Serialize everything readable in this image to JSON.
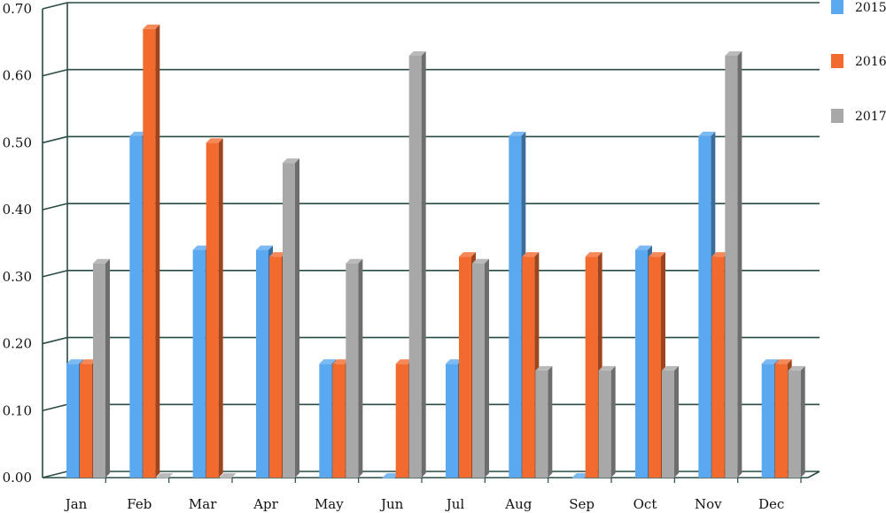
{
  "chart_data": {
    "type": "bar",
    "title": "",
    "xlabel": "",
    "ylabel": "",
    "ylim": [
      0,
      0.7
    ],
    "yticks": [
      "0.00",
      "0.10",
      "0.20",
      "0.30",
      "0.40",
      "0.50",
      "0.60",
      "0.70"
    ],
    "grid": true,
    "legend_position": "top-right",
    "categories": [
      "Jan",
      "Feb",
      "Mar",
      "Apr",
      "May",
      "Jun",
      "Jul",
      "Aug",
      "Sep",
      "Oct",
      "Nov",
      "Dec"
    ],
    "series": [
      {
        "name": "2015",
        "color": "#5aa8f0",
        "values": [
          0.17,
          0.51,
          0.34,
          0.34,
          0.17,
          0.0,
          0.17,
          0.51,
          0.0,
          0.34,
          0.51,
          0.17
        ]
      },
      {
        "name": "2016",
        "color": "#f26a2e",
        "values": [
          0.17,
          0.67,
          0.5,
          0.33,
          0.17,
          0.17,
          0.33,
          0.33,
          0.33,
          0.33,
          0.33,
          0.17
        ]
      },
      {
        "name": "2017",
        "color": "#a8a8a8",
        "values": [
          0.32,
          0.0,
          0.0,
          0.47,
          0.32,
          0.63,
          0.32,
          0.16,
          0.16,
          0.16,
          0.63,
          0.16
        ]
      }
    ]
  }
}
